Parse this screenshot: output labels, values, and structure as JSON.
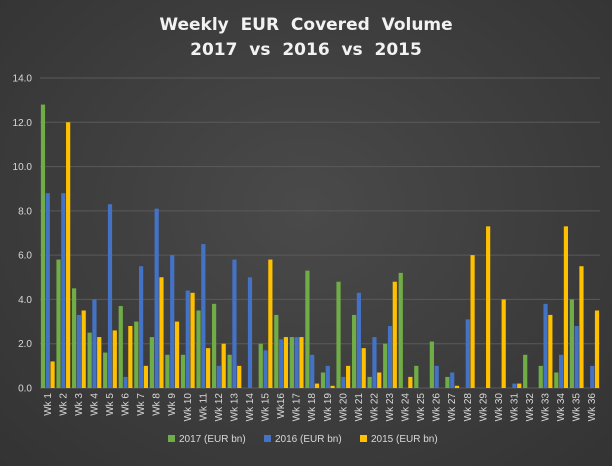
{
  "chart_data": {
    "type": "bar",
    "title_line1": "Weekly  EUR  Covered  Volume",
    "title_line2": "2017  vs  2016  vs  2015",
    "categories": [
      "Wk 1",
      "Wk 2",
      "Wk 3",
      "Wk 4",
      "Wk 5",
      "Wk 6",
      "Wk 7",
      "Wk 8",
      "Wk 9",
      "Wk 10",
      "Wk 11",
      "Wk 12",
      "Wk 13",
      "Wk 14",
      "Wk 15",
      "Wk16",
      "Wk 17",
      "Wk 18",
      "Wk 19",
      "Wk 20",
      "Wk 21",
      "Wk 22",
      "Wk 23",
      "Wk 24",
      "Wk 25",
      "Wk 26",
      "Wk 27",
      "Wk 28",
      "Wk 29",
      "Wk 30",
      "Wk 31",
      "Wk 32",
      "Wk 33",
      "Wk 34",
      "Wk 35",
      "Wk 36"
    ],
    "y_ticks": [
      "0.0",
      "2.0",
      "4.0",
      "6.0",
      "8.0",
      "10.0",
      "12.0",
      "14.0"
    ],
    "ylim": [
      0,
      14
    ],
    "grid": true,
    "legend_position": "bottom",
    "series": [
      {
        "name": "2017 (EUR bn)",
        "color": "#70ad47",
        "values": [
          12.8,
          5.8,
          4.5,
          2.5,
          1.6,
          3.7,
          3.0,
          2.3,
          1.5,
          1.5,
          3.5,
          3.8,
          1.5,
          0,
          2.0,
          3.3,
          2.3,
          5.3,
          0.7,
          4.8,
          3.3,
          0.5,
          2.0,
          5.2,
          1.0,
          2.1,
          0.5,
          0,
          0,
          0,
          0,
          1.5,
          1.0,
          0.7,
          4.0,
          0
        ]
      },
      {
        "name": "2016  (EUR bn)",
        "color": "#4472c4",
        "values": [
          8.8,
          8.8,
          3.3,
          4.0,
          8.3,
          0.5,
          5.5,
          8.1,
          6.0,
          4.4,
          6.5,
          1.0,
          5.8,
          5.0,
          1.7,
          2.2,
          2.3,
          1.5,
          1.0,
          0.5,
          4.3,
          2.3,
          2.8,
          0,
          0,
          1.0,
          0.7,
          3.1,
          0,
          0,
          0.2,
          0,
          3.8,
          1.5,
          2.8,
          1.0
        ]
      },
      {
        "name": "2015  (EUR bn)",
        "color": "#ffc000",
        "values": [
          1.2,
          12.0,
          3.5,
          2.3,
          2.6,
          2.8,
          1.0,
          5.0,
          3.0,
          4.3,
          1.8,
          2.0,
          1.0,
          0,
          5.8,
          2.3,
          2.3,
          0.2,
          0.1,
          1.0,
          1.8,
          0.7,
          4.8,
          0.5,
          0,
          0,
          0.1,
          6.0,
          7.3,
          4.0,
          0.2,
          0,
          3.3,
          7.3,
          5.5,
          3.5
        ]
      }
    ]
  }
}
